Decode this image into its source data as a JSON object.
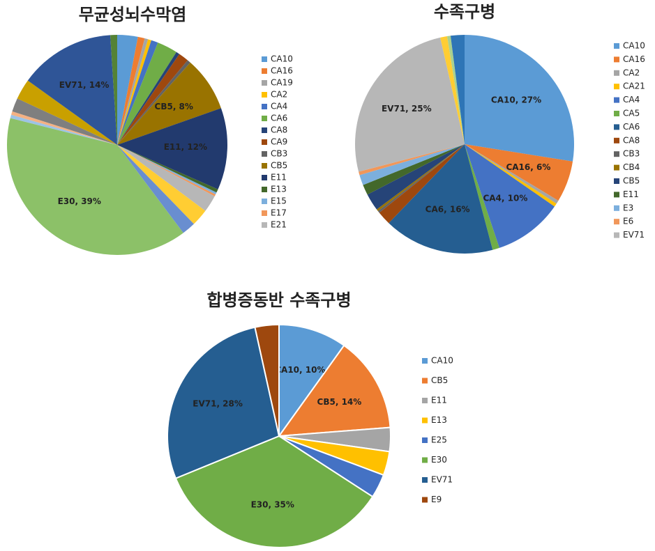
{
  "chart_data": [
    {
      "type": "pie",
      "title": "무균성뇌수막염",
      "categories": [
        "CA10",
        "CA16",
        "CA19",
        "CA2",
        "CA4",
        "CA6",
        "CA8",
        "CA9",
        "CB3",
        "CB5",
        "E11",
        "E13",
        "E15",
        "E17",
        "E21",
        null,
        null,
        null,
        null,
        null,
        null,
        null,
        null,
        null
      ],
      "values": [
        3,
        1,
        0.5,
        0.5,
        1,
        3,
        0.5,
        1.5,
        0.5,
        8,
        12,
        0.5,
        0.3,
        0.3,
        2.5,
        2.5,
        2,
        39,
        0.5,
        0.5,
        2,
        3,
        14,
        1
      ],
      "value_labels": [
        null,
        null,
        null,
        null,
        null,
        null,
        null,
        null,
        null,
        "CB5, 8%",
        "E11, 12%",
        null,
        null,
        null,
        null,
        null,
        null,
        "E30, 39%",
        null,
        null,
        null,
        null,
        "EV71, 14%",
        null
      ],
      "colors": [
        "#5b9bd5",
        "#ed7d31",
        "#a5a5a5",
        "#ffc000",
        "#4472c4",
        "#70ad47",
        "#264478",
        "#9e480e",
        "#636363",
        "#997300",
        "#223a6e",
        "#43682b",
        "#7cafdd",
        "#f1975a",
        "#b7b7b7",
        "#ffcd33",
        "#698ed0",
        "#8cc168",
        "#9dc3e6",
        "#f4b183",
        "#7f7f7f",
        "#c9a000",
        "#2f5597",
        "#548235"
      ]
    },
    {
      "type": "pie",
      "title": "수족구병",
      "categories": [
        "CA10",
        "CA16",
        "CA2",
        "CA21",
        "CA4",
        "CA5",
        "CA6",
        "CA8",
        "CB3",
        "CB4",
        "CB5",
        "E11",
        "E3",
        "E6",
        "EV71",
        null,
        null,
        null
      ],
      "values": [
        27,
        6,
        0.5,
        0.5,
        10,
        1,
        16,
        2,
        0.3,
        0.3,
        2.5,
        1.5,
        1.5,
        0.5,
        25,
        1,
        0.5,
        2
      ],
      "value_labels": [
        "CA10, 27%",
        "CA16, 6%",
        null,
        null,
        "CA4, 10%",
        null,
        "CA6, 16%",
        null,
        null,
        null,
        null,
        null,
        null,
        null,
        "EV71, 25%",
        null,
        null,
        null
      ],
      "colors": [
        "#5b9bd5",
        "#ed7d31",
        "#a5a5a5",
        "#ffc000",
        "#4472c4",
        "#70ad47",
        "#255e91",
        "#9e480e",
        "#636363",
        "#997300",
        "#264478",
        "#43682b",
        "#7cafdd",
        "#f1975a",
        "#b7b7b7",
        "#ffcd33",
        "#a9d18e",
        "#2e75b6"
      ]
    },
    {
      "type": "pie",
      "title": "합병증동반 수족구병",
      "categories": [
        "CA10",
        "CB5",
        "E11",
        "E13",
        "E25",
        "E30",
        "EV71",
        "E9"
      ],
      "values": [
        10,
        14,
        3.5,
        3.5,
        3.5,
        35,
        28,
        3.5
      ],
      "value_labels": [
        "CA10, 10%",
        "CB5, 14%",
        null,
        null,
        null,
        "E30, 35%",
        "EV71, 28%",
        null
      ],
      "colors": [
        "#5b9bd5",
        "#ed7d31",
        "#a5a5a5",
        "#ffc000",
        "#4472c4",
        "#70ad47",
        "#255e91",
        "#9e480e"
      ]
    }
  ]
}
